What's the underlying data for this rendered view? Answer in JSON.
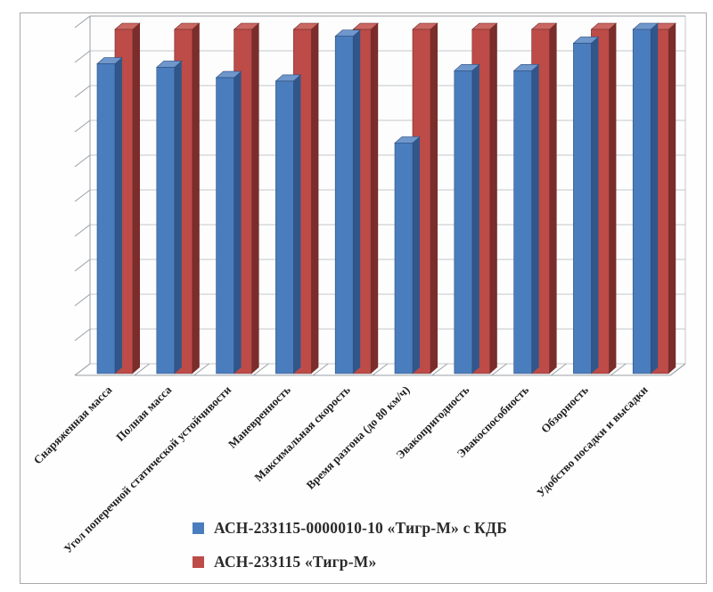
{
  "chart_data": {
    "type": "bar",
    "projection": "3d-clustered-column",
    "title": "",
    "xlabel": "",
    "ylabel": "",
    "ylim": [
      0,
      100
    ],
    "grid": true,
    "grid_step": 10,
    "y_tick_labels_visible": false,
    "legend_position": "bottom",
    "categories": [
      "Снаряженная масса",
      "Полная масса",
      "Угол поперечной статической устойчивости",
      "Маневренность",
      "Максимальная скорость",
      "Время разгона (до 80 км/ч)",
      "Эвакопригодность",
      "Эвакоспособность",
      "Обзорность",
      "Удобство посадки и высадки"
    ],
    "series": [
      {
        "name": "АСН-233115-0000010-10 «Тигр-М» с КДБ",
        "values": [
          90,
          89,
          86,
          85,
          98,
          67,
          88,
          88,
          96,
          100
        ],
        "color_face": "#4a7dbd",
        "color_side": "#31568a",
        "color_top": "#6f97cc",
        "color_edge": "#2d4d7c"
      },
      {
        "name": "АСН-233115 «Тигр-М»",
        "values": [
          100,
          100,
          100,
          100,
          100,
          100,
          100,
          100,
          100,
          100
        ],
        "color_face": "#bd4b48",
        "color_side": "#7a2d2b",
        "color_top": "#ca6763",
        "color_edge": "#6e2a28"
      }
    ],
    "colors": {
      "gridline": "#c3c7cc",
      "axis": "#9aa0a6",
      "category_label": "#1f1f1f",
      "wall_background": "#fdfdfd",
      "frame_border": "#a9a9a9"
    }
  }
}
